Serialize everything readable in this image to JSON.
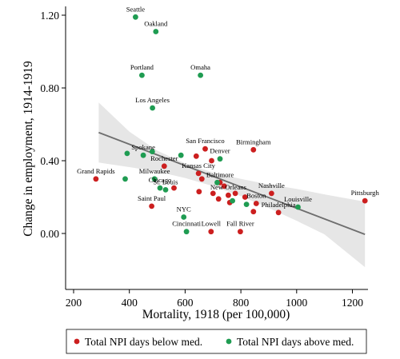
{
  "chart_data": {
    "type": "scatter",
    "title": "",
    "xlabel": "Mortality, 1918 (per 100,000)",
    "ylabel": "Change in employment, 1914-1919",
    "xlim": [
      180,
      1270
    ],
    "ylim": [
      -0.12,
      1.24
    ],
    "xticks": [
      200,
      400,
      600,
      800,
      1000,
      1200
    ],
    "yticks": [
      0.0,
      0.4,
      0.8,
      1.2
    ],
    "xtick_labels": [
      "200",
      "400",
      "600",
      "800",
      "1000",
      "1200"
    ],
    "ytick_labels": [
      "0.00",
      "0.40",
      "0.80",
      "1.20"
    ],
    "grid": false,
    "legend_position": "bottom",
    "fit_line": {
      "x": [
        290,
        1245
      ],
      "y": [
        0.555,
        -0.005
      ]
    },
    "confidence_band": {
      "x": [
        290,
        400,
        500,
        600,
        700,
        800,
        900,
        1000,
        1100,
        1245
      ],
      "upper": [
        0.72,
        0.56,
        0.455,
        0.385,
        0.335,
        0.3,
        0.27,
        0.245,
        0.215,
        0.175
      ],
      "lower": [
        0.39,
        0.365,
        0.34,
        0.305,
        0.26,
        0.205,
        0.14,
        0.07,
        -0.005,
        -0.185
      ]
    },
    "series": [
      {
        "name": "Total NPI days below med.",
        "color": "#cc1f1f",
        "points": [
          {
            "label": "Grand Rapids",
            "x": 280,
            "y": 0.3
          },
          {
            "label": "Pittsburgh",
            "x": 1245,
            "y": 0.18
          },
          {
            "label": "Birmingham",
            "x": 845,
            "y": 0.46
          },
          {
            "label": "San Francisco",
            "x": 672,
            "y": 0.465
          },
          {
            "label": "Rochester",
            "x": 525,
            "y": 0.37
          },
          {
            "label": "Kansas City",
            "x": 648,
            "y": 0.33
          },
          {
            "label": "Baltimore",
            "x": 725,
            "y": 0.28
          },
          {
            "label": "Saint Paul",
            "x": 480,
            "y": 0.15
          },
          {
            "label": "Nashville",
            "x": 910,
            "y": 0.22
          },
          {
            "label": "New Orleans",
            "x": 755,
            "y": 0.21
          },
          {
            "label": "Boston",
            "x": 855,
            "y": 0.165
          },
          {
            "label": "Philadelphia",
            "x": 935,
            "y": 0.115
          },
          {
            "label": "Lowell",
            "x": 693,
            "y": 0.01
          },
          {
            "label": "Fall River",
            "x": 798,
            "y": 0.01
          },
          {
            "label": "",
            "x": 640,
            "y": 0.425
          },
          {
            "label": "",
            "x": 660,
            "y": 0.3
          },
          {
            "label": "",
            "x": 695,
            "y": 0.4
          },
          {
            "label": "",
            "x": 650,
            "y": 0.23
          },
          {
            "label": "",
            "x": 700,
            "y": 0.22
          },
          {
            "label": "",
            "x": 720,
            "y": 0.19
          },
          {
            "label": "",
            "x": 740,
            "y": 0.26
          },
          {
            "label": "",
            "x": 760,
            "y": 0.17
          },
          {
            "label": "",
            "x": 780,
            "y": 0.22
          },
          {
            "label": "",
            "x": 815,
            "y": 0.2
          },
          {
            "label": "",
            "x": 845,
            "y": 0.12
          },
          {
            "label": "",
            "x": 560,
            "y": 0.25
          }
        ]
      },
      {
        "name": "Total NPI days above med.",
        "color": "#1f9c52",
        "points": [
          {
            "label": "Seattle",
            "x": 422,
            "y": 1.19
          },
          {
            "label": "Oakland",
            "x": 495,
            "y": 1.11
          },
          {
            "label": "Portland",
            "x": 445,
            "y": 0.87
          },
          {
            "label": "Omaha",
            "x": 655,
            "y": 0.87
          },
          {
            "label": "Los Angeles",
            "x": 483,
            "y": 0.69
          },
          {
            "label": "Spokane",
            "x": 450,
            "y": 0.43
          },
          {
            "label": "Denver",
            "x": 725,
            "y": 0.41
          },
          {
            "label": "Milwaukee",
            "x": 490,
            "y": 0.3
          },
          {
            "label": "Chicago",
            "x": 510,
            "y": 0.25
          },
          {
            "label": "St. Louis",
            "x": 530,
            "y": 0.24
          },
          {
            "label": "Louisville",
            "x": 1005,
            "y": 0.145
          },
          {
            "label": "NYC",
            "x": 595,
            "y": 0.09
          },
          {
            "label": "Cincinnati",
            "x": 605,
            "y": 0.01
          },
          {
            "label": "",
            "x": 392,
            "y": 0.44
          },
          {
            "label": "",
            "x": 385,
            "y": 0.3
          },
          {
            "label": "",
            "x": 482,
            "y": 0.45
          },
          {
            "label": "",
            "x": 585,
            "y": 0.43
          },
          {
            "label": "",
            "x": 715,
            "y": 0.28
          },
          {
            "label": "",
            "x": 770,
            "y": 0.18
          },
          {
            "label": "",
            "x": 820,
            "y": 0.16
          }
        ]
      }
    ]
  }
}
